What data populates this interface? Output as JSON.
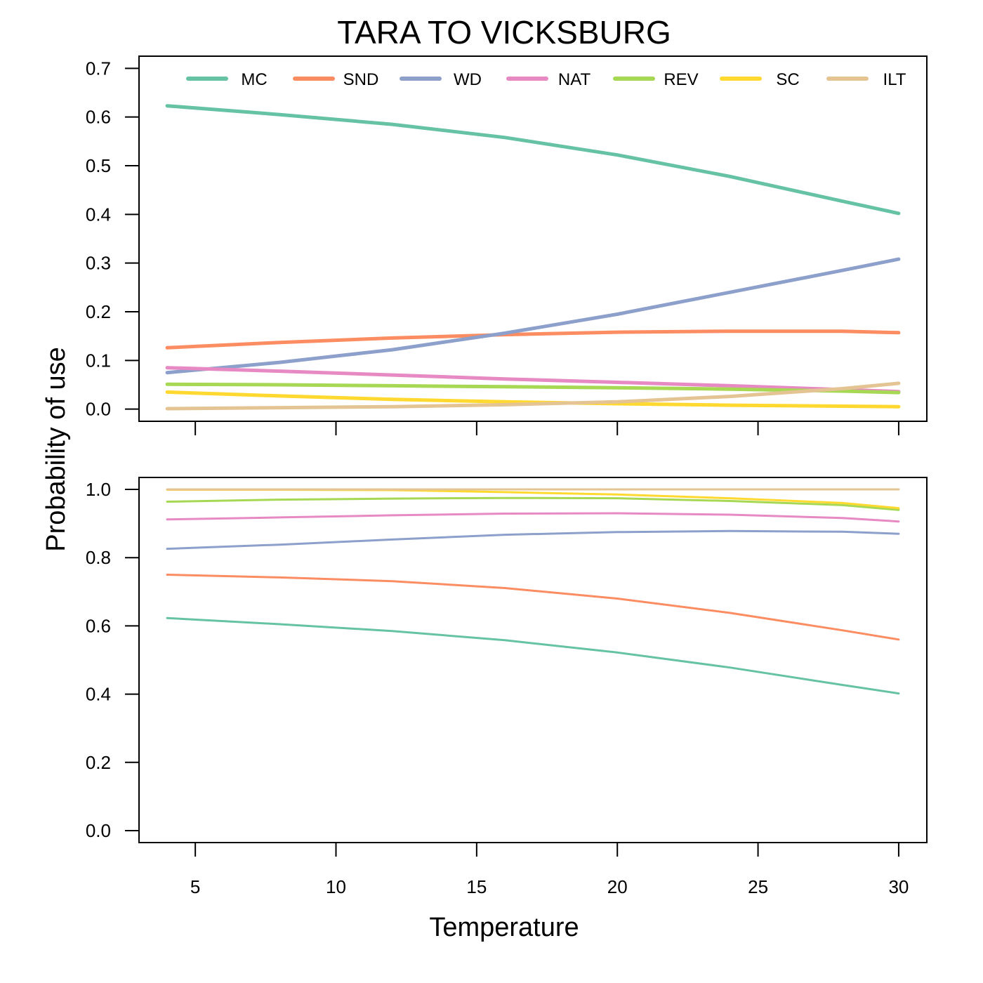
{
  "title": "TARA TO VICKSBURG",
  "xlabel": "Temperature",
  "ylabel": "Probability of use",
  "legend": {
    "placement": "top",
    "entries": [
      "MC",
      "SND",
      "WD",
      "NAT",
      "REV",
      "SC",
      "ILT"
    ]
  },
  "colors": {
    "MC": "#66C2A5",
    "SND": "#FC8D62",
    "WD": "#8DA0CB",
    "NAT": "#E78AC3",
    "REV": "#A6D854",
    "SC": "#FFD92F",
    "ILT": "#E5C494"
  },
  "chart_data": [
    {
      "type": "line",
      "panel": "top",
      "title": "TARA TO VICKSBURG",
      "ylabel": "Probability of use",
      "x_ticks": [
        5,
        10,
        15,
        20,
        25,
        30
      ],
      "y_ticks": [
        "0.0",
        "0.1",
        "0.2",
        "0.3",
        "0.4",
        "0.5",
        "0.6",
        "0.7"
      ],
      "xlim": [
        3,
        31
      ],
      "ylim": [
        -0.025,
        0.725
      ],
      "grid": false,
      "x": [
        4,
        8,
        12,
        16,
        20,
        24,
        28,
        30
      ],
      "series": [
        {
          "name": "MC",
          "values": [
            0.623,
            0.605,
            0.585,
            0.558,
            0.522,
            0.478,
            0.427,
            0.402
          ]
        },
        {
          "name": "SND",
          "values": [
            0.126,
            0.137,
            0.146,
            0.153,
            0.158,
            0.16,
            0.16,
            0.157
          ]
        },
        {
          "name": "WD",
          "values": [
            0.075,
            0.096,
            0.122,
            0.156,
            0.195,
            0.24,
            0.285,
            0.308
          ]
        },
        {
          "name": "NAT",
          "values": [
            0.085,
            0.078,
            0.07,
            0.062,
            0.055,
            0.048,
            0.04,
            0.036
          ]
        },
        {
          "name": "REV",
          "values": [
            0.051,
            0.05,
            0.048,
            0.046,
            0.044,
            0.041,
            0.037,
            0.034
          ]
        },
        {
          "name": "SC",
          "values": [
            0.035,
            0.027,
            0.02,
            0.015,
            0.011,
            0.008,
            0.006,
            0.005
          ]
        },
        {
          "name": "ILT",
          "values": [
            0.001,
            0.003,
            0.005,
            0.009,
            0.015,
            0.026,
            0.042,
            0.053
          ]
        }
      ]
    },
    {
      "type": "line",
      "panel": "bottom",
      "xlabel": "Temperature",
      "x_ticks": [
        "5",
        "10",
        "15",
        "20",
        "25",
        "30"
      ],
      "y_ticks": [
        "0.0",
        "0.2",
        "0.4",
        "0.6",
        "0.8",
        "1.0"
      ],
      "xlim": [
        3,
        31
      ],
      "ylim": [
        -0.035,
        1.035
      ],
      "grid": false,
      "x": [
        4,
        8,
        12,
        16,
        20,
        24,
        28,
        30
      ],
      "series": [
        {
          "name": "MC",
          "values": [
            0.623,
            0.605,
            0.585,
            0.558,
            0.522,
            0.478,
            0.427,
            0.402
          ]
        },
        {
          "name": "SND",
          "values": [
            0.75,
            0.742,
            0.731,
            0.711,
            0.68,
            0.638,
            0.587,
            0.56
          ]
        },
        {
          "name": "WD",
          "values": [
            0.826,
            0.838,
            0.853,
            0.867,
            0.875,
            0.878,
            0.876,
            0.87
          ]
        },
        {
          "name": "NAT",
          "values": [
            0.912,
            0.918,
            0.924,
            0.929,
            0.93,
            0.926,
            0.916,
            0.906
          ]
        },
        {
          "name": "REV",
          "values": [
            0.964,
            0.97,
            0.973,
            0.975,
            0.974,
            0.966,
            0.954,
            0.94
          ]
        },
        {
          "name": "SC",
          "values": [
            0.999,
            0.999,
            0.998,
            0.992,
            0.985,
            0.974,
            0.96,
            0.945
          ]
        },
        {
          "name": "ILT",
          "values": [
            1.0,
            1.0,
            1.0,
            1.0,
            1.0,
            1.0,
            1.0,
            1.0
          ]
        }
      ]
    }
  ]
}
